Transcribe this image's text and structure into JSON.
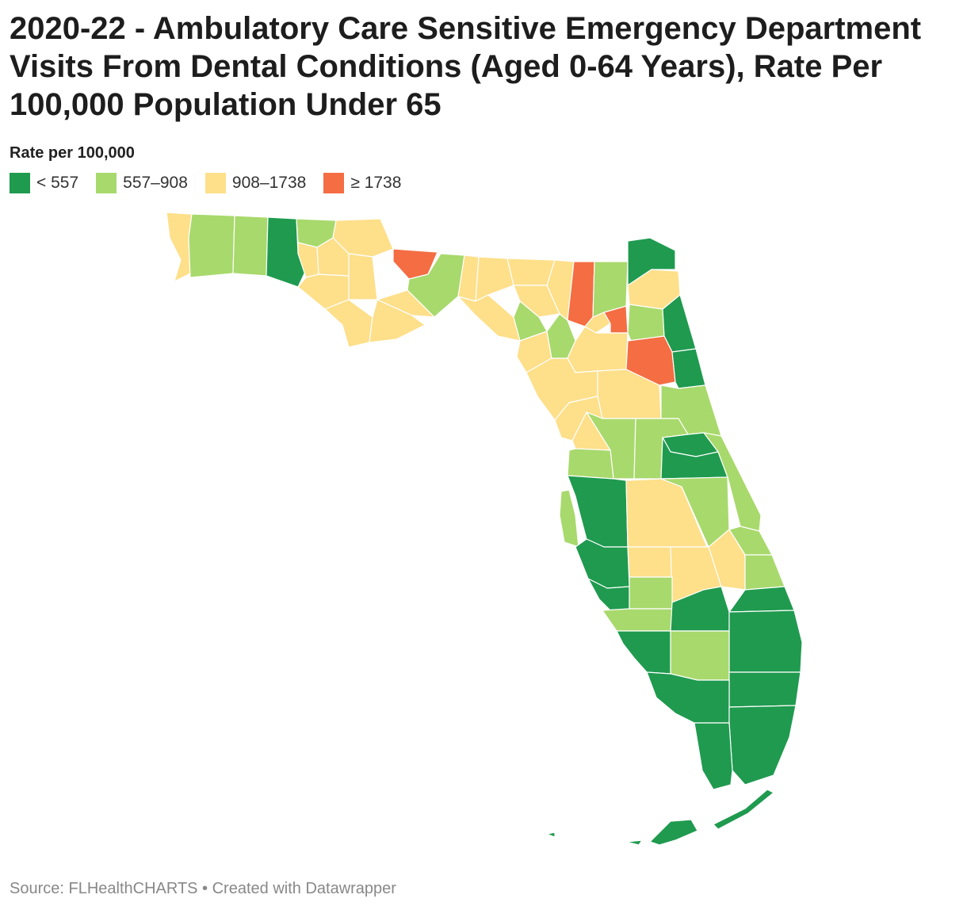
{
  "title": "2020-22 - Ambulatory Care Sensitive Emergency Department Visits From Dental Conditions (Aged 0-64 Years), Rate Per 100,000 Population Under 65",
  "legend": {
    "title": "Rate per 100,000",
    "bins": [
      {
        "label": "< 557",
        "color": "#1f9a4f"
      },
      {
        "label": "557–908",
        "color": "#a8d96c"
      },
      {
        "label": "908–1738",
        "color": "#fedf8a"
      },
      {
        "label": "≥ 1738",
        "color": "#f46d43"
      }
    ]
  },
  "source": "Source: FLHealthCHARTS • Created with Datawrapper"
}
